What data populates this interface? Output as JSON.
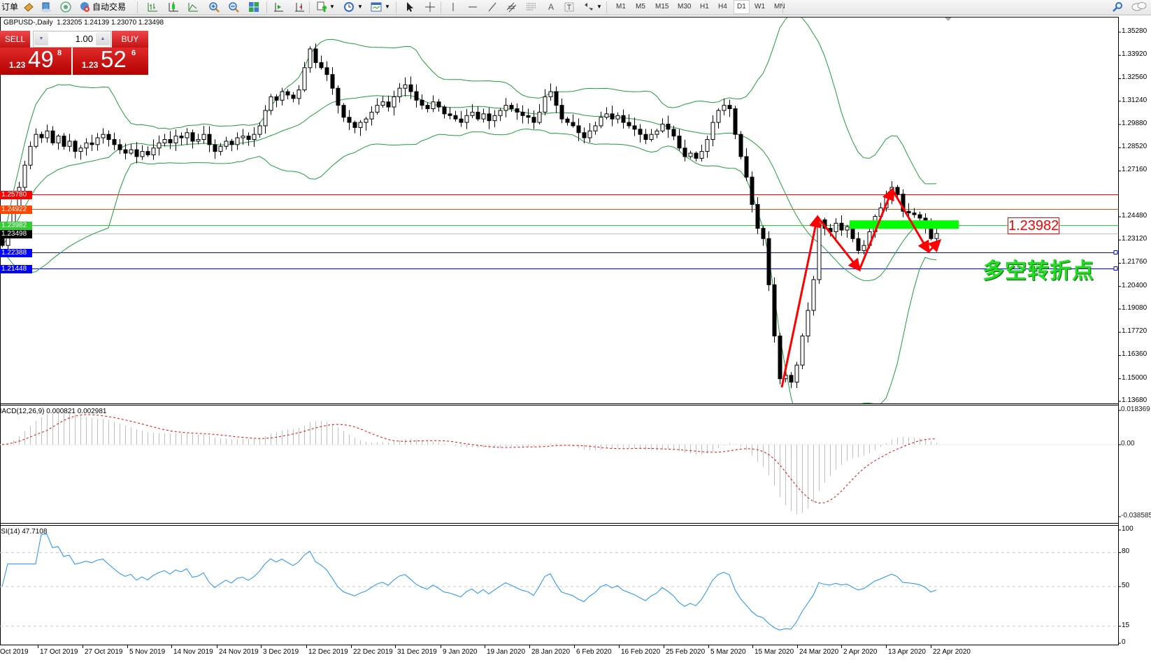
{
  "toolbar": {
    "orders_label": "订单",
    "autotrade_label": "自动交易",
    "icons": [
      "orders-icon",
      "navigator-icon",
      "signals-icon",
      "autotrade-icon",
      "bar-chart-icon",
      "candlestick-icon",
      "line-chart-icon",
      "zoom-in-icon",
      "zoom-out-icon",
      "tile-windows-icon",
      "autoscroll-icon",
      "chart-shift-icon",
      "indicators-icon",
      "periods-icon",
      "templates-icon",
      "cursor-icon",
      "crosshair-icon",
      "vertical-line-icon",
      "horizontal-line-icon",
      "trendline-icon",
      "equidistant-channel-icon",
      "fibonacci-icon",
      "text-icon",
      "text-label-icon",
      "arrows-icon",
      "search-icon",
      "chat-icon"
    ],
    "timeframes": [
      "M1",
      "M5",
      "M15",
      "M30",
      "H1",
      "H4",
      "D1",
      "W1",
      "MN"
    ],
    "active_timeframe": "D1"
  },
  "chart_header": {
    "symbol": "GBPUSD-,Daily",
    "ohlc": "1.23205 1.24139 1.23070 1.23498"
  },
  "trade_panel": {
    "sell_label": "SELL",
    "buy_label": "BUY",
    "volume": "1.00",
    "sell_price": {
      "prefix": "1.23",
      "big": "49",
      "sup": "8"
    },
    "buy_price": {
      "prefix": "1.23",
      "big": "52",
      "sup": "6"
    }
  },
  "price_axis": {
    "ticks": [
      "1.35280",
      "1.33920",
      "1.32560",
      "1.31240",
      "1.29880",
      "1.28520",
      "1.27160",
      "1.24480",
      "1.23120",
      "1.21760",
      "1.20400",
      "1.19080",
      "1.17720",
      "1.16360",
      "1.15000",
      "1.13680"
    ]
  },
  "price_levels": [
    {
      "value": "1.25780",
      "color": "#ff0000",
      "label_color": "#ff0000"
    },
    {
      "value": "1.24922",
      "color": "#ff4500",
      "label_color": "#ff4500"
    },
    {
      "value": "1.23982",
      "color": "#32cd32",
      "label_color": "#32cd32"
    },
    {
      "value": "1.23498",
      "color": "#c0c0c0",
      "label_color": "#000000"
    },
    {
      "value": "1.22388",
      "color": "#0000ff",
      "label_color": "#0000ff"
    },
    {
      "value": "1.21448",
      "color": "#0000ff",
      "label_color": "#0000ff"
    }
  ],
  "annotation": {
    "price_box": "1.23982",
    "chinese_text": "多空转折点",
    "zone_color": "#00ff00",
    "arrow_color": "#ff0000"
  },
  "macd": {
    "label": "MACD(12,26,9) 0.000821 0.002981",
    "axis": [
      "0.018369",
      "0.00",
      "-0.038585"
    ]
  },
  "rsi": {
    "label": "RSI(14) 47.7108",
    "axis": [
      "100",
      "80",
      "50",
      "15",
      "0"
    ]
  },
  "date_axis": [
    "Oct 2019",
    "17 Oct 2019",
    "27 Oct 2019",
    "5 Nov 2019",
    "14 Nov 2019",
    "24 Nov 2019",
    "3 Dec 2019",
    "12 Dec 2019",
    "22 Dec 2019",
    "31 Dec 2019",
    "9 Jan 2020",
    "19 Jan 2020",
    "28 Jan 2020",
    "6 Feb 2020",
    "16 Feb 2020",
    "25 Feb 2020",
    "5 Mar 2020",
    "15 Mar 2020",
    "24 Mar 2020",
    "2 Apr 2020",
    "13 Apr 2020",
    "22 Apr 2020"
  ],
  "chart_data": {
    "type": "candlestick",
    "symbol": "GBPUSD-",
    "timeframe": "Daily",
    "ylim": [
      1.1368,
      1.3528
    ],
    "indicators": [
      "Bollinger Bands(20,2)",
      "MACD(12,26,9)",
      "RSI(14)"
    ],
    "last_bar": {
      "open": 1.23205,
      "high": 1.24139,
      "low": 1.2307,
      "close": 1.23498
    },
    "close": [
      1.228,
      1.236,
      1.25,
      1.262,
      1.275,
      1.286,
      1.293,
      1.291,
      1.295,
      1.288,
      1.292,
      1.286,
      1.289,
      1.283,
      1.285,
      1.288,
      1.287,
      1.291,
      1.293,
      1.29,
      1.287,
      1.284,
      1.282,
      1.284,
      1.28,
      1.283,
      1.281,
      1.285,
      1.288,
      1.29,
      1.288,
      1.292,
      1.291,
      1.294,
      1.289,
      1.29,
      1.293,
      1.287,
      1.283,
      1.286,
      1.289,
      1.287,
      1.291,
      1.292,
      1.29,
      1.293,
      1.298,
      1.307,
      1.315,
      1.313,
      1.318,
      1.316,
      1.314,
      1.319,
      1.332,
      1.343,
      1.335,
      1.332,
      1.328,
      1.32,
      1.31,
      1.303,
      1.3,
      1.297,
      1.3,
      1.302,
      1.306,
      1.31,
      1.312,
      1.309,
      1.315,
      1.32,
      1.322,
      1.318,
      1.313,
      1.31,
      1.308,
      1.312,
      1.309,
      1.305,
      1.304,
      1.302,
      1.3,
      1.304,
      1.306,
      1.302,
      1.305,
      1.301,
      1.304,
      1.307,
      1.31,
      1.308,
      1.306,
      1.304,
      1.303,
      1.3,
      1.306,
      1.315,
      1.318,
      1.31,
      1.302,
      1.3,
      1.298,
      1.294,
      1.291,
      1.295,
      1.298,
      1.303,
      1.305,
      1.302,
      1.304,
      1.3,
      1.298,
      1.296,
      1.293,
      1.29,
      1.293,
      1.295,
      1.299,
      1.296,
      1.292,
      1.285,
      1.28,
      1.282,
      1.279,
      1.283,
      1.29,
      1.3,
      1.307,
      1.31,
      1.308,
      1.293,
      1.28,
      1.268,
      1.252,
      1.238,
      1.232,
      1.205,
      1.175,
      1.15,
      1.152,
      1.148,
      1.158,
      1.175,
      1.19,
      1.208,
      1.243,
      1.238,
      1.236,
      1.241,
      1.237,
      1.239,
      1.232,
      1.225,
      1.228,
      1.236,
      1.245,
      1.25,
      1.256,
      1.262,
      1.258,
      1.248,
      1.247,
      1.246,
      1.244,
      1.24,
      1.232,
      1.23498
    ]
  }
}
